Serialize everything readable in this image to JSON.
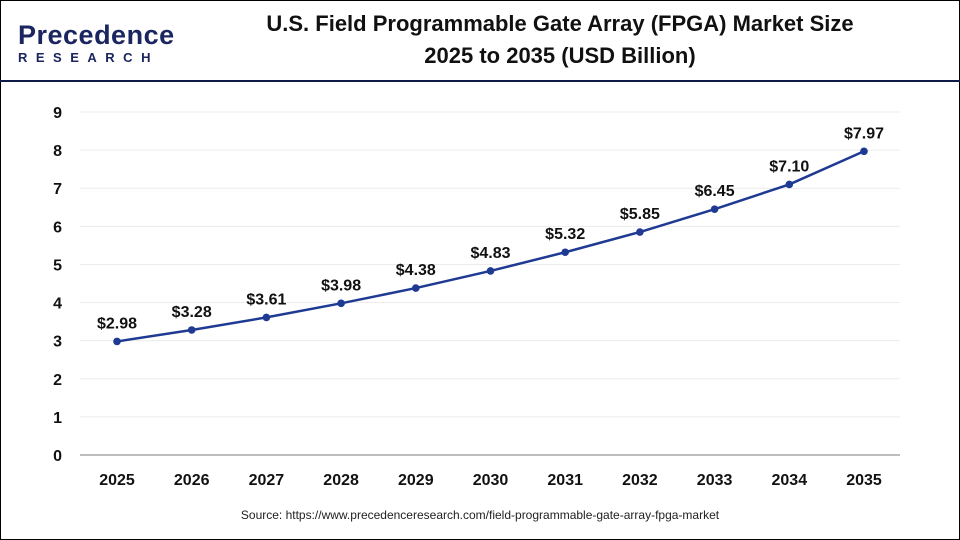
{
  "logo": {
    "line1": "Precedence",
    "line2": "RESEARCH"
  },
  "header": {
    "title_line1": "U.S. Field Programmable Gate Array (FPGA) Market Size",
    "title_line2": "2025 to 2035 (USD Billion)"
  },
  "source": "Source: https://www.precedenceresearch.com/field-programmable-gate-array-fpga-market",
  "chart_data": {
    "type": "line",
    "title": "U.S. Field Programmable Gate Array (FPGA) Market Size 2025 to 2035 (USD Billion)",
    "categories": [
      "2025",
      "2026",
      "2027",
      "2028",
      "2029",
      "2030",
      "2031",
      "2032",
      "2033",
      "2034",
      "2035"
    ],
    "values": [
      2.98,
      3.28,
      3.61,
      3.98,
      4.38,
      4.83,
      5.32,
      5.85,
      6.45,
      7.1,
      7.97
    ],
    "data_labels": [
      "$2.98",
      "$3.28",
      "$3.61",
      "$3.98",
      "$4.38",
      "$4.83",
      "$5.32",
      "$5.85",
      "$6.45",
      "$7.10",
      "$7.97"
    ],
    "ylim": [
      0,
      9
    ],
    "yticks": [
      "0",
      "1",
      "2",
      "3",
      "4",
      "5",
      "6",
      "7",
      "8",
      "9"
    ],
    "grid": "horizontal",
    "line_color": "#1f3a93",
    "xlabel": "",
    "ylabel": ""
  }
}
